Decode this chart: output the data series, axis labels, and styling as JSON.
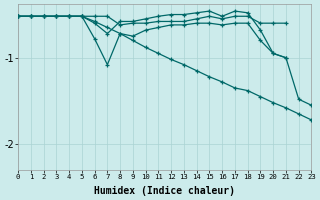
{
  "xlabel": "Humidex (Indice chaleur)",
  "background_color": "#ccebeb",
  "line_color": "#006868",
  "grid_color": "#aad4d4",
  "xlim": [
    0,
    23
  ],
  "ylim": [
    -2.3,
    -0.38
  ],
  "xticks": [
    0,
    1,
    2,
    3,
    4,
    5,
    6,
    7,
    8,
    9,
    10,
    11,
    12,
    13,
    14,
    15,
    16,
    17,
    18,
    19,
    20,
    21,
    22,
    23
  ],
  "yticks": [
    -2,
    -1
  ],
  "series": [
    {
      "x": [
        0,
        1,
        2,
        3,
        4,
        5,
        6,
        7,
        8,
        9,
        10,
        11,
        12,
        13,
        14,
        15,
        16,
        17,
        18,
        19,
        20,
        21
      ],
      "y": [
        -0.52,
        -0.52,
        -0.52,
        -0.52,
        -0.52,
        -0.52,
        -0.52,
        -0.52,
        -0.62,
        -0.6,
        -0.6,
        -0.58,
        -0.58,
        -0.58,
        -0.55,
        -0.52,
        -0.55,
        -0.52,
        -0.52,
        -0.6,
        -0.6,
        -0.6
      ],
      "marker": true
    },
    {
      "x": [
        0,
        1,
        2,
        3,
        4,
        5,
        6,
        7,
        8,
        9,
        10,
        11,
        12,
        13,
        14,
        15,
        16,
        17,
        18,
        19,
        20,
        21
      ],
      "y": [
        -0.52,
        -0.52,
        -0.52,
        -0.52,
        -0.52,
        -0.52,
        -0.6,
        -0.72,
        -0.58,
        -0.58,
        -0.55,
        -0.52,
        -0.5,
        -0.5,
        -0.48,
        -0.46,
        -0.52,
        -0.46,
        -0.48,
        -0.68,
        -0.95,
        -1.0
      ],
      "marker": true
    },
    {
      "x": [
        0,
        1,
        2,
        3,
        4,
        5,
        6,
        7,
        8,
        9,
        10,
        11,
        12,
        13,
        14,
        15,
        16,
        17,
        18,
        19,
        20,
        21,
        22,
        23
      ],
      "y": [
        -0.52,
        -0.52,
        -0.52,
        -0.52,
        -0.52,
        -0.52,
        -0.78,
        -1.08,
        -0.72,
        -0.75,
        -0.68,
        -0.65,
        -0.62,
        -0.62,
        -0.6,
        -0.6,
        -0.62,
        -0.6,
        -0.6,
        -0.8,
        -0.95,
        -1.0,
        -1.48,
        -1.55
      ],
      "marker": true
    },
    {
      "x": [
        0,
        1,
        2,
        3,
        4,
        5,
        6,
        7,
        8,
        9,
        10,
        11,
        12,
        13,
        14,
        15,
        16,
        17,
        18,
        19,
        20,
        21,
        22,
        23
      ],
      "y": [
        -0.52,
        -0.52,
        -0.52,
        -0.52,
        -0.52,
        -0.52,
        -0.58,
        -0.65,
        -0.72,
        -0.8,
        -0.88,
        -0.95,
        -1.02,
        -1.08,
        -1.15,
        -1.22,
        -1.28,
        -1.35,
        -1.38,
        -1.45,
        -1.52,
        -1.58,
        -1.65,
        -1.72
      ],
      "marker": true
    }
  ]
}
